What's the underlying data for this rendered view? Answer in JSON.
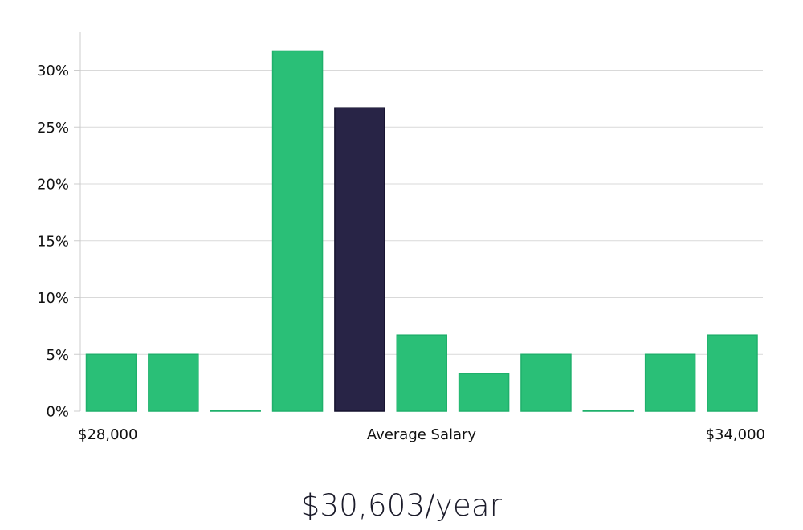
{
  "chart_data": {
    "type": "bar",
    "values": [
      5.0,
      5.0,
      0.0,
      31.7,
      26.7,
      6.7,
      3.3,
      5.0,
      0.0,
      5.0,
      6.7
    ],
    "highlight_index": 4,
    "ylim": [
      0,
      33.3
    ],
    "yticks": [
      0,
      5,
      10,
      15,
      20,
      25,
      30
    ],
    "ytick_labels": [
      "0%",
      "5%",
      "10%",
      "15%",
      "20%",
      "25%",
      "30%"
    ],
    "x_left_label": "$28,000",
    "x_center_label": "Average Salary",
    "x_right_label": "$34,000",
    "grid": true,
    "colors": {
      "bar": "#2abf77",
      "bar_border": "#1fb06b",
      "highlight": "#282446",
      "highlight_border": "#15122e",
      "grid": "#d9d9d9",
      "axis": "#cccccc",
      "text": "#111111"
    }
  },
  "salary_text": "$30,603/year"
}
